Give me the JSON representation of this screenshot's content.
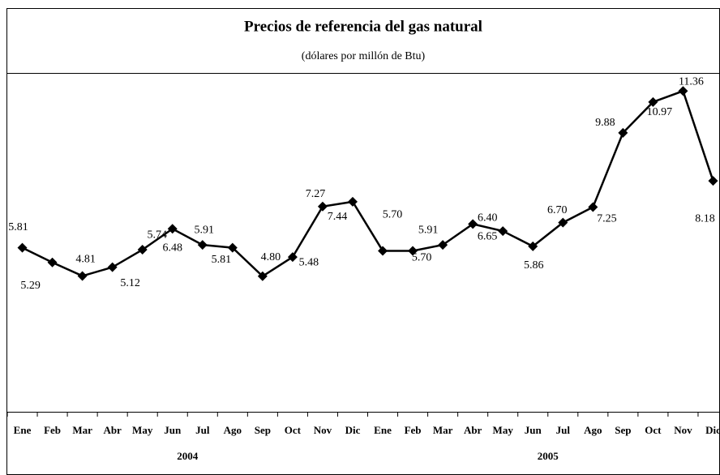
{
  "chart_data": {
    "type": "line",
    "title": "Precios de referencia del gas natural",
    "subtitle": "(dólares por millón de Btu)",
    "categories": [
      "Ene",
      "Feb",
      "Mar",
      "Abr",
      "May",
      "Jun",
      "Jul",
      "Ago",
      "Sep",
      "Oct",
      "Nov",
      "Dic",
      "Ene",
      "Feb",
      "Mar",
      "Abr",
      "May",
      "Jun",
      "Jul",
      "Ago",
      "Sep",
      "Oct",
      "Nov",
      "Dic"
    ],
    "groups": [
      "2004",
      "2005"
    ],
    "series": [
      {
        "name": "Precio",
        "color": "#000000",
        "values": [
          5.81,
          5.29,
          4.81,
          5.12,
          5.74,
          6.48,
          5.91,
          5.81,
          4.8,
          5.48,
          7.27,
          7.44,
          5.7,
          5.7,
          5.91,
          6.65,
          6.4,
          5.86,
          6.7,
          7.25,
          9.88,
          10.97,
          11.36,
          8.18
        ],
        "value_labels": [
          "5.81",
          "5.29",
          "4.81",
          "5.12",
          "5.74",
          "6.48",
          "5.91",
          "5.81",
          "4.80",
          "5.48",
          "7.27",
          "7.44",
          "5.70",
          "5.70",
          "5.91",
          "6.65",
          "6.40",
          "5.86",
          "6.70",
          "7.25",
          "9.88",
          "10.97",
          "11.36",
          "8.18"
        ]
      }
    ],
    "ylim": [
      0,
      12
    ]
  }
}
